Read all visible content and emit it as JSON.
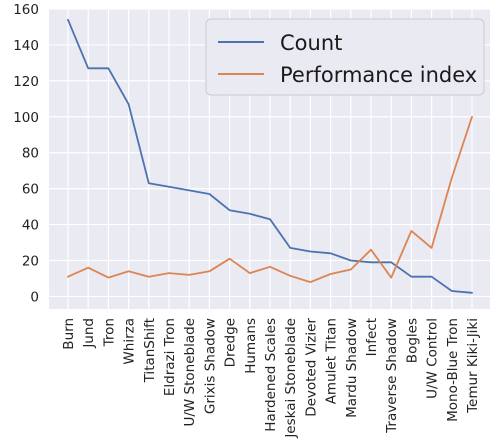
{
  "chart_data": {
    "type": "line",
    "title": "",
    "xlabel": "",
    "ylabel": "",
    "ylim": [
      -7,
      160
    ],
    "yticks": [
      0,
      20,
      40,
      60,
      80,
      100,
      120,
      140,
      160
    ],
    "grid": true,
    "legend_position": "top-right",
    "categories": [
      "Burn",
      "Jund",
      "Tron",
      "Whirza",
      "TitanShift",
      "Eldrazi Tron",
      "U/W Stoneblade",
      "Grixis Shadow",
      "Dredge",
      "Humans",
      "Hardened Scales",
      "Jeskai Stoneblade",
      "Devoted Vizier",
      "Amulet Titan",
      "Mardu Shadow",
      "Infect",
      "Traverse Shadow",
      "Bogles",
      "U/W Control",
      "Mono-Blue Tron",
      "Temur Kiki-Jiki"
    ],
    "series": [
      {
        "name": "Count",
        "color": "#4c72b0",
        "values": [
          154,
          127,
          127,
          107,
          63,
          61,
          59,
          57,
          48,
          46,
          43,
          27,
          25,
          24,
          20,
          19,
          19,
          11,
          11,
          3,
          2
        ]
      },
      {
        "name": "Performance index",
        "color": "#dd8452",
        "values": [
          11,
          16,
          10.5,
          14,
          11,
          13,
          12,
          14,
          21,
          13,
          16.5,
          11.5,
          8,
          12.5,
          15,
          26,
          10.5,
          36.5,
          27,
          66,
          100
        ]
      }
    ]
  }
}
